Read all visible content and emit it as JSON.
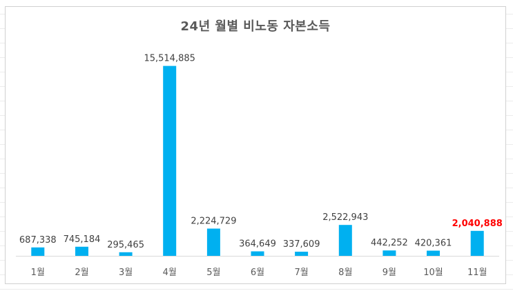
{
  "chart_data": {
    "type": "bar",
    "title": "24년 월별 비노동 자본소득",
    "categories": [
      "1월",
      "2월",
      "3월",
      "4월",
      "5월",
      "6월",
      "7월",
      "8월",
      "9월",
      "10월",
      "11월"
    ],
    "values": [
      687338,
      745184,
      295465,
      15514885,
      2224729,
      364649,
      337609,
      2522943,
      442252,
      420361,
      2040888
    ],
    "data_labels": [
      "687,338",
      "745,184",
      "295,465",
      "15,514,885",
      "2,224,729",
      "364,649",
      "337,609",
      "2,522,943",
      "442,252",
      "420,361",
      "2,040,888"
    ],
    "highlight_index": 10,
    "xlabel": "",
    "ylabel": "",
    "ylim": [
      0,
      16000000
    ],
    "grid": false,
    "legend": "none",
    "colors": {
      "bar": "#00b0f0",
      "highlight_label": "#ff0000",
      "axis": "#d9d9d9"
    }
  }
}
